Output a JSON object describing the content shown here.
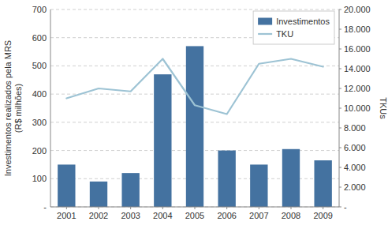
{
  "chart_data": {
    "type": "bar",
    "x": [
      2001,
      2002,
      2003,
      2004,
      2005,
      2006,
      2007,
      2008,
      2009
    ],
    "xlim": [
      2000.5,
      2009.5
    ],
    "xticks": [
      2001,
      2002,
      2003,
      2004,
      2005,
      2006,
      2007,
      2008,
      2009
    ],
    "series": [
      {
        "name": "Investimentos",
        "type": "bar",
        "color": "#4472A0",
        "values": [
          150,
          90,
          120,
          470,
          570,
          200,
          150,
          205,
          165
        ]
      },
      {
        "name": "TKU",
        "type": "line",
        "color": "#9DC3D4",
        "axis": "y2",
        "values": [
          11000,
          12000,
          11700,
          15000,
          10300,
          9400,
          14500,
          15000,
          14200
        ]
      }
    ],
    "ylabel": "Investimentos realizados pela MRS\n(R$ milhões)",
    "y2label": "TKUs",
    "ylim": [
      0,
      700
    ],
    "yticks": [
      {
        "value": 0,
        "label": "-"
      },
      100,
      200,
      300,
      400,
      500,
      600,
      700
    ],
    "y2lim": [
      0,
      20000
    ],
    "y2ticks": [
      {
        "value": 0,
        "label": "-"
      },
      {
        "value": 2000,
        "label": "2.000"
      },
      {
        "value": 4000,
        "label": "4.000"
      },
      {
        "value": 6000,
        "label": "6.000"
      },
      {
        "value": 8000,
        "label": "8.000"
      },
      {
        "value": 10000,
        "label": "10.000"
      },
      {
        "value": 12000,
        "label": "12.000"
      },
      {
        "value": 14000,
        "label": "14.000"
      },
      {
        "value": 16000,
        "label": "16.000"
      },
      {
        "value": 18000,
        "label": "18.000"
      },
      {
        "value": 20000,
        "label": "20.000"
      }
    ],
    "grid": true,
    "legend": "upper right"
  }
}
